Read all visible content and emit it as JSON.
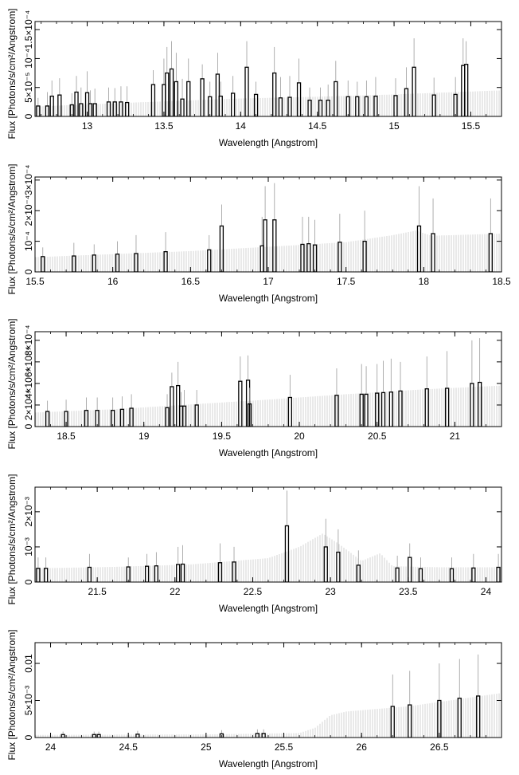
{
  "figure": {
    "xlabel": "Wavelength [Angstrom]",
    "ylabel": "Flux [Photons/s/cm²/Angstrom]"
  },
  "colors": {
    "model_hatch": "#c8c8c8",
    "line_bar": "#000000",
    "error_whisker": "#9a9a9a"
  },
  "chart_data": [
    {
      "type": "bar",
      "xlim": [
        12.66,
        15.7
      ],
      "ylim": [
        0,
        0.000164
      ],
      "xticks": [
        13,
        13.5,
        14,
        14.5,
        15,
        15.5
      ],
      "yticks": [
        0,
        5e-05,
        0.0001,
        0.00015
      ],
      "ytick_labels": [
        "0",
        "5×10⁻⁵",
        "10⁻⁴",
        "1.5×10⁻⁴"
      ],
      "continuum": [
        [
          12.66,
          1.7e-05
        ],
        [
          13.5,
          2.6e-05
        ],
        [
          14.0,
          3.1e-05
        ],
        [
          14.5,
          3.4e-05
        ],
        [
          15.0,
          3.8e-05
        ],
        [
          15.7,
          4.5e-05
        ]
      ],
      "lines": [
        [
          12.68,
          1.8e-05,
          3.2e-05
        ],
        [
          12.74,
          1.8e-05,
          4.2e-05
        ],
        [
          12.77,
          3.5e-05,
          6.2e-05
        ],
        [
          12.82,
          3.7e-05,
          6.6e-05
        ],
        [
          12.9,
          2e-05,
          4e-05
        ],
        [
          12.93,
          4.2e-05,
          7e-05
        ],
        [
          12.96,
          2.2e-05,
          5e-05
        ],
        [
          13.0,
          4.1e-05,
          7.8e-05
        ],
        [
          13.02,
          2.2e-05,
          4.5e-05
        ],
        [
          13.05,
          2.2e-05,
          4.8e-05
        ],
        [
          13.14,
          2.5e-05,
          5e-05
        ],
        [
          13.18,
          2.5e-05,
          4.9e-05
        ],
        [
          13.22,
          2.5e-05,
          5.2e-05
        ],
        [
          13.26,
          2.4e-05,
          5.2e-05
        ],
        [
          13.43,
          5.5e-05,
          8e-05
        ],
        [
          13.5,
          5.5e-05,
          0.0001
        ],
        [
          13.52,
          7.5e-05,
          0.00012
        ],
        [
          13.55,
          8.2e-05,
          0.00013
        ],
        [
          13.58,
          6e-05,
          0.00011
        ],
        [
          13.62,
          3e-05,
          6.5e-05
        ],
        [
          13.66,
          6e-05,
          0.0001
        ],
        [
          13.75,
          6.5e-05,
          9e-05
        ],
        [
          13.8,
          3.4e-05,
          6e-05
        ],
        [
          13.85,
          7.3e-05,
          0.00011
        ],
        [
          13.87,
          3.5e-05,
          6e-05
        ],
        [
          13.95,
          4e-05,
          7e-05
        ],
        [
          14.04,
          8.5e-05,
          0.00013
        ],
        [
          14.1,
          3.8e-05,
          6e-05
        ],
        [
          14.22,
          7.5e-05,
          0.00012
        ],
        [
          14.26,
          3.2e-05,
          6.8e-05
        ],
        [
          14.32,
          3.3e-05,
          7e-05
        ],
        [
          14.38,
          5.8e-05,
          0.0001
        ],
        [
          14.45,
          2.8e-05,
          5e-05
        ],
        [
          14.52,
          2.8e-05,
          5e-05
        ],
        [
          14.57,
          2.8e-05,
          5.5e-05
        ],
        [
          14.62,
          6e-05,
          9.6e-05
        ],
        [
          14.7,
          3.4e-05,
          6.2e-05
        ],
        [
          14.76,
          3.4e-05,
          6e-05
        ],
        [
          14.82,
          3.4e-05,
          6.2e-05
        ],
        [
          14.88,
          3.5e-05,
          6.8e-05
        ],
        [
          15.01,
          3.6e-05,
          6.6e-05
        ],
        [
          15.26,
          3.7e-05,
          6.7e-05
        ],
        [
          15.08,
          4.8e-05,
          8.5e-05
        ],
        [
          15.13,
          8.5e-05,
          0.000135
        ],
        [
          15.4,
          3.8e-05,
          6.8e-05
        ],
        [
          15.45,
          8.8e-05,
          0.000135
        ],
        [
          15.47,
          9e-05,
          0.00013
        ]
      ]
    },
    {
      "type": "bar",
      "xlim": [
        15.5,
        18.5
      ],
      "ylim": [
        0,
        0.00031
      ],
      "xticks": [
        15.5,
        16,
        16.5,
        17,
        17.5,
        18,
        18.5
      ],
      "yticks": [
        0,
        0.0001,
        0.0002,
        0.0003
      ],
      "ytick_labels": [
        "0",
        "10⁻⁴",
        "2×10⁻⁴",
        "3×10⁻⁴"
      ],
      "continuum": [
        [
          15.5,
          4.8e-05
        ],
        [
          16.0,
          5.8e-05
        ],
        [
          16.5,
          6.8e-05
        ],
        [
          17.0,
          8.2e-05
        ],
        [
          17.5,
          9.7e-05
        ],
        [
          17.8,
          0.00012
        ],
        [
          17.95,
          0.000135
        ],
        [
          18.05,
          0.000118
        ],
        [
          18.5,
          0.000125
        ]
      ],
      "lines": [
        [
          15.55,
          5e-05,
          8e-05
        ],
        [
          15.75,
          5.2e-05,
          9.5e-05
        ],
        [
          15.88,
          5.5e-05,
          9e-05
        ],
        [
          16.03,
          5.8e-05,
          0.0001
        ],
        [
          16.15,
          6e-05,
          0.00012
        ],
        [
          16.34,
          6.6e-05,
          0.00013
        ],
        [
          16.62,
          7.2e-05,
          0.00012
        ],
        [
          16.7,
          0.00015,
          0.00022
        ],
        [
          16.96,
          8.5e-05,
          0.00018
        ],
        [
          16.98,
          0.00017,
          0.00028
        ],
        [
          17.04,
          0.00017,
          0.00029
        ],
        [
          17.22,
          9e-05,
          0.00018
        ],
        [
          17.26,
          9.2e-05,
          0.00018
        ],
        [
          17.3,
          8.8e-05,
          0.00017
        ],
        [
          17.46,
          9.7e-05,
          0.00019
        ],
        [
          17.62,
          0.0001,
          0.0002
        ],
        [
          17.97,
          0.00015,
          0.00028
        ],
        [
          18.06,
          0.000125,
          0.00024
        ],
        [
          18.43,
          0.000125,
          0.00024
        ]
      ]
    },
    {
      "type": "bar",
      "xlim": [
        18.3,
        21.3
      ],
      "ylim": [
        0,
        0.00088
      ],
      "xticks": [
        18.5,
        19,
        19.5,
        20,
        20.5,
        21
      ],
      "yticks": [
        0,
        0.0002,
        0.0004,
        0.0006,
        0.0008
      ],
      "ytick_labels": [
        "0",
        "2×10⁻⁴",
        "4×10⁻⁴",
        "6×10⁻⁴",
        "8×10⁻⁴"
      ],
      "continuum": [
        [
          18.3,
          0.00013
        ],
        [
          18.8,
          0.00016
        ],
        [
          19.3,
          0.000205
        ],
        [
          19.8,
          0.00025
        ],
        [
          20.3,
          0.0003
        ],
        [
          20.8,
          0.000345
        ],
        [
          21.3,
          0.00038
        ]
      ],
      "lines": [
        [
          18.38,
          0.00014,
          0.00024
        ],
        [
          18.5,
          0.00014,
          0.00025
        ],
        [
          18.63,
          0.00015,
          0.00027
        ],
        [
          18.7,
          0.00015,
          0.00027
        ],
        [
          18.8,
          0.00015,
          0.00027
        ],
        [
          18.86,
          0.00016,
          0.00028
        ],
        [
          18.92,
          0.00017,
          0.0003
        ],
        [
          19.15,
          0.000175,
          0.0003
        ],
        [
          19.18,
          0.00037,
          0.0005
        ],
        [
          19.22,
          0.00038,
          0.0006
        ],
        [
          19.24,
          0.00019,
          0.00032
        ],
        [
          19.26,
          0.00019,
          0.00034
        ],
        [
          19.34,
          0.0002,
          0.00034
        ],
        [
          19.62,
          0.00042,
          0.00065
        ],
        [
          19.67,
          0.00043,
          0.00066
        ],
        [
          19.68,
          0.00021,
          0.00036
        ],
        [
          19.94,
          0.00027,
          0.00048
        ],
        [
          20.24,
          0.00029,
          0.00054
        ],
        [
          20.4,
          0.0003,
          0.00058
        ],
        [
          20.43,
          0.0003,
          0.00056
        ],
        [
          20.5,
          0.00031,
          0.00058
        ],
        [
          20.54,
          0.000315,
          0.00061
        ],
        [
          20.59,
          0.00032,
          0.00063
        ],
        [
          20.65,
          0.00033,
          0.0006
        ],
        [
          20.82,
          0.00035,
          0.00065
        ],
        [
          20.95,
          0.000355,
          0.0007
        ],
        [
          21.11,
          0.0004,
          0.0008
        ],
        [
          21.16,
          0.00041,
          0.00082
        ]
      ]
    },
    {
      "type": "bar",
      "xlim": [
        21.1,
        24.1
      ],
      "ylim": [
        0,
        0.0027
      ],
      "xticks": [
        21.5,
        22,
        22.5,
        23,
        23.5,
        24
      ],
      "yticks": [
        0,
        0.001,
        0.002
      ],
      "ytick_labels": [
        "0",
        "10⁻³",
        "2×10⁻³"
      ],
      "continuum": [
        [
          21.1,
          0.00039
        ],
        [
          21.6,
          0.00043
        ],
        [
          22.1,
          0.0005
        ],
        [
          22.6,
          0.00068
        ],
        [
          22.8,
          0.001
        ],
        [
          22.95,
          0.00138
        ],
        [
          23.05,
          0.0011
        ],
        [
          23.2,
          0.0006
        ],
        [
          23.32,
          0.00082
        ],
        [
          23.4,
          0.00045
        ],
        [
          23.7,
          0.00042
        ],
        [
          24.1,
          0.00042
        ]
      ],
      "lines": [
        [
          21.12,
          0.00039,
          0.0007
        ],
        [
          21.17,
          0.00039,
          0.0007
        ],
        [
          21.45,
          0.00042,
          0.0008
        ],
        [
          21.7,
          0.00043,
          0.0007
        ],
        [
          21.82,
          0.00045,
          0.0008
        ],
        [
          21.88,
          0.00046,
          0.00085
        ],
        [
          22.02,
          0.0005,
          0.001
        ],
        [
          22.05,
          0.00051,
          0.00105
        ],
        [
          22.29,
          0.00055,
          0.0011
        ],
        [
          22.38,
          0.00057,
          0.001
        ],
        [
          22.72,
          0.0016,
          0.0026
        ],
        [
          22.97,
          0.001,
          0.0018
        ],
        [
          23.05,
          0.00085,
          0.0015
        ],
        [
          23.18,
          0.00048,
          0.0009
        ],
        [
          23.43,
          0.0004,
          0.00075
        ],
        [
          23.51,
          0.0007,
          0.0011
        ],
        [
          23.58,
          0.00038,
          0.0007
        ],
        [
          23.78,
          0.00038,
          0.0007
        ],
        [
          23.92,
          0.0004,
          0.0008
        ],
        [
          24.08,
          0.00042,
          0.0008
        ]
      ]
    },
    {
      "type": "bar",
      "xlim": [
        23.9,
        26.9
      ],
      "ylim": [
        0,
        0.0128
      ],
      "xticks": [
        24,
        24.5,
        25,
        25.5,
        26,
        26.5
      ],
      "yticks": [
        0,
        0.005,
        0.01
      ],
      "ytick_labels": [
        "0",
        "5×10⁻³",
        "0.01"
      ],
      "continuum": [
        [
          23.9,
          0.00035
        ],
        [
          25.0,
          0.00042
        ],
        [
          25.6,
          0.0006
        ],
        [
          25.7,
          0.0013
        ],
        [
          25.8,
          0.003
        ],
        [
          25.9,
          0.0035
        ],
        [
          26.3,
          0.0042
        ],
        [
          26.9,
          0.006
        ]
      ],
      "lines": [
        [
          24.08,
          0.0004,
          0.0008
        ],
        [
          24.28,
          0.0004,
          0.0008
        ],
        [
          24.31,
          0.0004,
          0.0008
        ],
        [
          24.56,
          0.00045,
          0.0009
        ],
        [
          25.1,
          0.0005,
          0.001
        ],
        [
          25.33,
          0.00055,
          0.0011
        ],
        [
          25.37,
          0.00055,
          0.0011
        ],
        [
          26.2,
          0.0042,
          0.0085
        ],
        [
          26.31,
          0.0044,
          0.009
        ],
        [
          26.5,
          0.005,
          0.01
        ],
        [
          26.63,
          0.0053,
          0.0106
        ],
        [
          26.75,
          0.0056,
          0.0112
        ]
      ]
    }
  ]
}
